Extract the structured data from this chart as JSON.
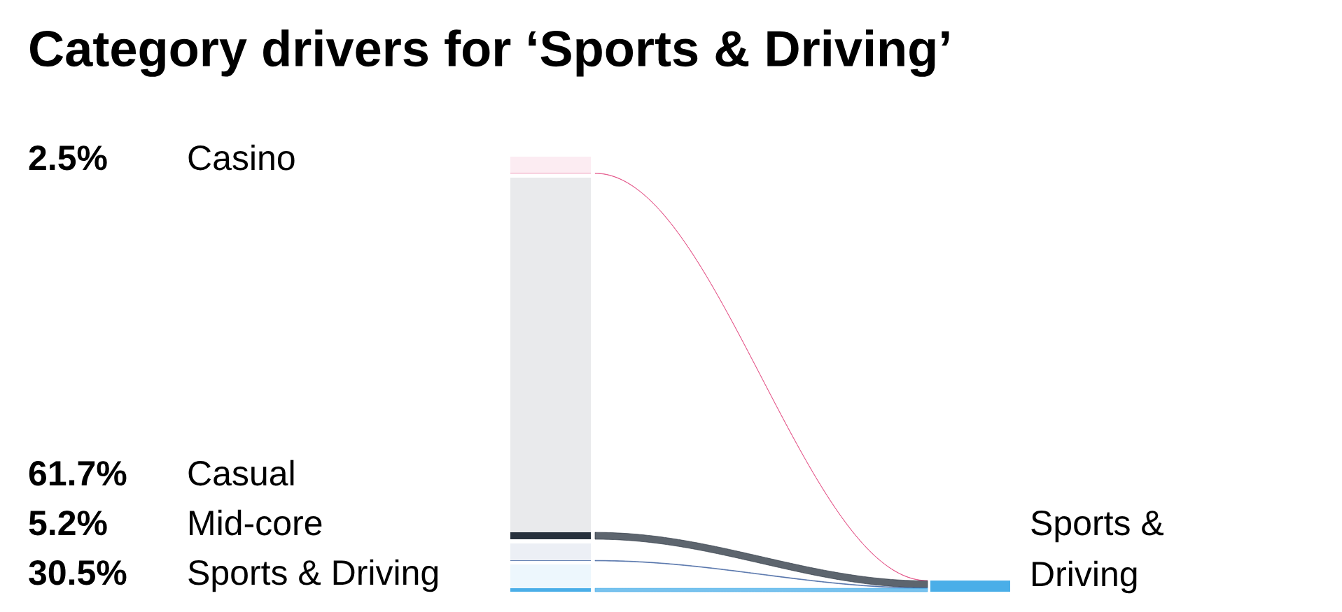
{
  "chart_data": {
    "type": "other",
    "title": "Category drivers for ‘Sports & Driving’",
    "categories": [
      "Casino",
      "Casual",
      "Mid-core",
      "Sports & Driving"
    ],
    "values": [
      2.5,
      61.7,
      5.2,
      30.5
    ],
    "value_labels": [
      "2.5%",
      "61.7%",
      "5.2%",
      "30.5%"
    ],
    "colors": [
      "#e0407a",
      "#27313d",
      "#3c5f9e",
      "#4aaee8"
    ],
    "annotations": [
      "Sports & Driving"
    ]
  }
}
